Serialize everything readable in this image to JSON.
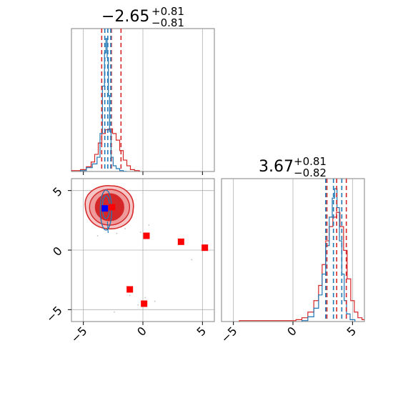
{
  "colors": {
    "red": "#d62728",
    "blue": "#1f77b4",
    "marker_red": "#ff0000",
    "marker_blue": "#0000ff"
  },
  "titles": {
    "p1_main": "−2.65",
    "p1_plus": "+0.81",
    "p1_minus": "−0.81",
    "p2_main": "3.67",
    "p2_plus": "+0.81",
    "p2_minus": "−0.82"
  },
  "chart_data": [
    {
      "type": "histogram",
      "panel": "top-left",
      "xlim": [
        -6,
        6
      ],
      "xticks": [
        -5,
        0,
        5
      ],
      "series": [
        {
          "color": "red",
          "x_centers": [
            -6.5,
            -5.5,
            -5,
            -4.5,
            -4.2,
            -3.9,
            -3.6,
            -3.3,
            -3.0,
            -2.7,
            -2.4,
            -2.1,
            -1.8,
            -1.5,
            -1.2,
            -0.9,
            -0.5
          ],
          "counts": [
            0,
            1,
            2,
            5,
            10,
            18,
            30,
            40,
            44,
            45,
            40,
            33,
            22,
            12,
            6,
            2,
            1
          ]
        },
        {
          "color": "blue",
          "x_centers": [
            -5,
            -4.5,
            -4.0,
            -3.7,
            -3.5,
            -3.3,
            -3.15,
            -3.05,
            -2.95,
            -2.85,
            -2.75,
            -2.6,
            -2.4,
            -2.1,
            -1.8,
            -1.5
          ],
          "counts": [
            1,
            4,
            8,
            15,
            40,
            90,
            125,
            140,
            120,
            80,
            42,
            15,
            6,
            3,
            1,
            0
          ]
        }
      ],
      "vlines": [
        {
          "color": "red",
          "x": [
            -3.46,
            -2.65,
            -1.84
          ]
        },
        {
          "color": "blue",
          "x": [
            -3.2,
            -2.95,
            -2.7
          ]
        }
      ]
    },
    {
      "type": "contour",
      "panel": "bottom-left",
      "xlim": [
        -6,
        6
      ],
      "ylim": [
        -6,
        6
      ],
      "xticks": [
        -5,
        0,
        5
      ],
      "yticks": [
        -5,
        0,
        5
      ],
      "red_contour_center": [
        -2.8,
        3.6
      ],
      "blue_contour_center": [
        -3.1,
        3.6
      ],
      "truth_markers_red": [
        [
          -2.6,
          3.6
        ],
        [
          0.3,
          1.2
        ],
        [
          3.2,
          0.7
        ],
        [
          5.2,
          0.2
        ],
        [
          -1.1,
          -3.3
        ],
        [
          0.1,
          -4.5
        ]
      ],
      "truth_markers_blue": [
        [
          -3.2,
          3.5
        ]
      ]
    },
    {
      "type": "histogram",
      "panel": "bottom-right",
      "xlim": [
        -6,
        6
      ],
      "xticks": [
        -5,
        0,
        5
      ],
      "series": [
        {
          "color": "red",
          "x_centers": [
            -4,
            -3,
            -2,
            -1,
            0,
            0.5,
            1,
            1.5,
            2,
            2.3,
            2.6,
            2.9,
            3.2,
            3.5,
            3.8,
            4.1,
            4.4,
            4.7,
            5.0,
            5.3,
            5.6,
            6
          ],
          "counts": [
            1,
            1,
            1,
            1,
            1,
            2,
            4,
            10,
            22,
            38,
            60,
            85,
            100,
            110,
            115,
            100,
            75,
            45,
            22,
            10,
            4,
            2
          ]
        },
        {
          "color": "blue",
          "x_centers": [
            1,
            1.5,
            2,
            2.3,
            2.6,
            2.9,
            3.2,
            3.4,
            3.6,
            3.8,
            4.0,
            4.2,
            4.4,
            4.6,
            5.0
          ],
          "counts": [
            1,
            5,
            14,
            28,
            50,
            80,
            110,
            130,
            140,
            120,
            85,
            50,
            22,
            8,
            2
          ]
        }
      ],
      "vlines": [
        {
          "color": "red",
          "x": [
            2.85,
            3.67,
            4.48
          ]
        },
        {
          "color": "blue",
          "x": [
            2.75,
            3.4,
            4.1
          ]
        }
      ]
    }
  ]
}
